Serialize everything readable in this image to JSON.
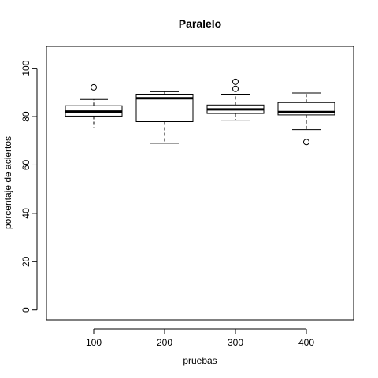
{
  "chart_data": {
    "type": "boxplot",
    "title": "Paralelo",
    "xlabel": "pruebas",
    "ylabel": "porcentaje de aciertos",
    "ylim": [
      -4,
      109
    ],
    "yticks": [
      0,
      20,
      40,
      60,
      80,
      100
    ],
    "categories": [
      "100",
      "200",
      "300",
      "400"
    ],
    "boxes": [
      {
        "category": "100",
        "whisker_low": 75.3,
        "q1": 80.2,
        "median": 82.1,
        "q3": 84.5,
        "whisker_high": 87.1,
        "outliers": [
          92.1
        ]
      },
      {
        "category": "200",
        "whisker_low": 69.0,
        "q1": 77.9,
        "median": 87.6,
        "q3": 89.3,
        "whisker_high": 90.3,
        "outliers": []
      },
      {
        "category": "300",
        "whisker_low": 78.5,
        "q1": 81.3,
        "median": 83.0,
        "q3": 84.8,
        "whisker_high": 89.3,
        "outliers": [
          91.5,
          94.4
        ]
      },
      {
        "category": "400",
        "whisker_low": 74.6,
        "q1": 80.7,
        "median": 81.9,
        "q3": 85.8,
        "whisker_high": 89.8,
        "outliers": [
          69.5
        ]
      }
    ],
    "grid": false,
    "legend": "none"
  }
}
